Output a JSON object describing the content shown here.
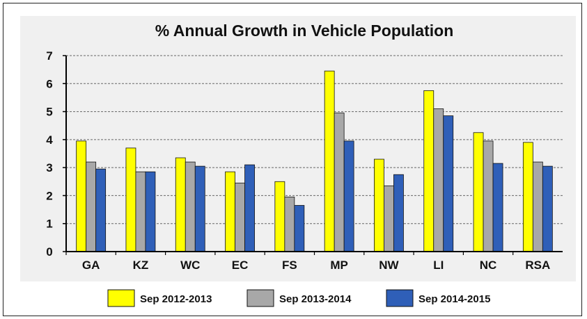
{
  "chart_data": {
    "type": "bar",
    "title": "% Annual Growth in Vehicle Population",
    "xlabel": "",
    "ylabel": "",
    "categories": [
      "GA",
      "KZ",
      "WC",
      "EC",
      "FS",
      "MP",
      "NW",
      "LI",
      "NC",
      "RSA"
    ],
    "ylim": [
      0,
      7
    ],
    "yticks": [
      "0",
      "1",
      "2",
      "3",
      "4",
      "5",
      "6",
      "7"
    ],
    "grid": true,
    "legend_position": "bottom",
    "series": [
      {
        "name": "Sep 2012-2013",
        "color": "#ffff00",
        "values": [
          3.95,
          3.7,
          3.35,
          2.85,
          2.5,
          6.45,
          3.3,
          5.75,
          4.25,
          3.9
        ]
      },
      {
        "name": "Sep 2013-2014",
        "color": "#a8a8a8",
        "values": [
          3.2,
          2.85,
          3.2,
          2.45,
          1.95,
          4.95,
          2.35,
          5.1,
          3.95,
          3.2
        ]
      },
      {
        "name": "Sep 2014-2015",
        "color": "#2f5fb8",
        "values": [
          2.95,
          2.85,
          3.05,
          3.1,
          1.65,
          3.95,
          2.75,
          4.85,
          3.15,
          3.05
        ]
      }
    ]
  }
}
